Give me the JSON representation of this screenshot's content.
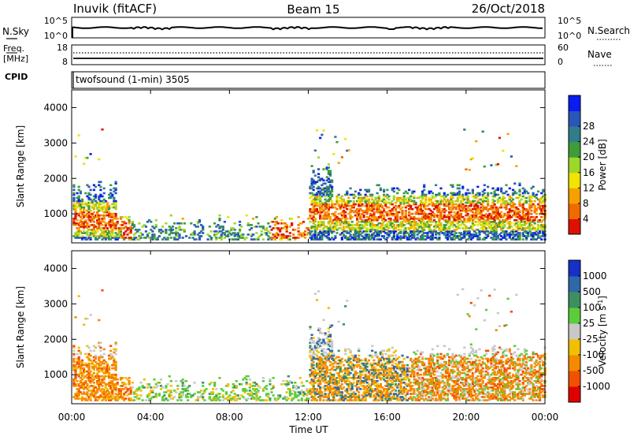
{
  "header": {
    "station": "Inuvik (fitACF)",
    "beam": "Beam 15",
    "date": "26/Oct/2018"
  },
  "nsky_panel": {
    "left_label": "N.Sky",
    "right_label": "N.Search",
    "left_ticks": [
      "10^5",
      "10^0"
    ],
    "right_ticks": [
      "10^5",
      "10^0"
    ]
  },
  "freq_panel": {
    "left_label_1": "Freq.",
    "left_label_2": "[MHz]",
    "right_label": "Nave",
    "left_ticks": [
      "18",
      "8"
    ],
    "right_ticks": [
      "60",
      "0"
    ]
  },
  "cpid_panel": {
    "label": "CPID",
    "text": "twofsound (1-min) 3505"
  },
  "chart_data": [
    {
      "type": "heatmap",
      "name": "power",
      "ylabel": "Slant Range [km]",
      "y_ticks": [
        "1000",
        "2000",
        "3000",
        "4000"
      ],
      "ylim": [
        180,
        4500
      ],
      "xlim": [
        0,
        24
      ],
      "colorbar": {
        "label": "Power [dB]",
        "ticks": [
          "4",
          "8",
          "12",
          "16",
          "20",
          "24",
          "28"
        ],
        "colors": [
          "#0a1cf0",
          "#2a56b8",
          "#2f7d8a",
          "#3f9c3a",
          "#9cd82a",
          "#f0e400",
          "#f5a200",
          "#f06a00",
          "#e01000"
        ]
      }
    },
    {
      "type": "heatmap",
      "name": "velocity",
      "ylabel": "Slant Range [km]",
      "y_ticks": [
        "1000",
        "2000",
        "3000",
        "4000"
      ],
      "ylim": [
        180,
        4500
      ],
      "xlim": [
        0,
        24
      ],
      "colorbar": {
        "label": "Velocity [m s",
        "label_sup": "-1",
        "label_end": "]",
        "ticks": [
          "1000",
          "500",
          "100",
          "25",
          "-25",
          "-100",
          "-500",
          "-1000"
        ],
        "colors": [
          "#1630c8",
          "#2f68a8",
          "#3c9060",
          "#5ccc3a",
          "#c8c8c8",
          "#f0c000",
          "#f58a00",
          "#f05000",
          "#e00000"
        ]
      }
    }
  ],
  "x_axis": {
    "ticks": [
      "00:00",
      "04:00",
      "08:00",
      "12:00",
      "16:00",
      "20:00",
      "00:00"
    ],
    "label": "Time UT"
  }
}
